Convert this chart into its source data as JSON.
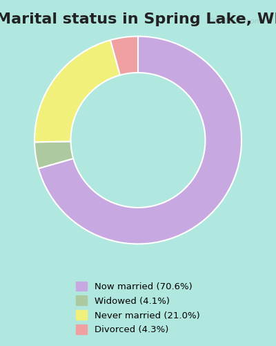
{
  "title": "Marital status in Spring Lake, WI",
  "slices": [
    70.6,
    4.1,
    21.0,
    4.3
  ],
  "labels": [
    "Now married (70.6%)",
    "Widowed (4.1%)",
    "Never married (21.0%)",
    "Divorced (4.3%)"
  ],
  "colors": [
    "#c8a8e0",
    "#adc9a0",
    "#f0f07a",
    "#f0a0a0"
  ],
  "background_top": "#b0e8e0",
  "background_chart": "#d8eedc",
  "legend_bg": "#ffffff",
  "title_fontsize": 16,
  "watermark": "City-Data.com",
  "donut_width": 0.35,
  "startangle": 90
}
